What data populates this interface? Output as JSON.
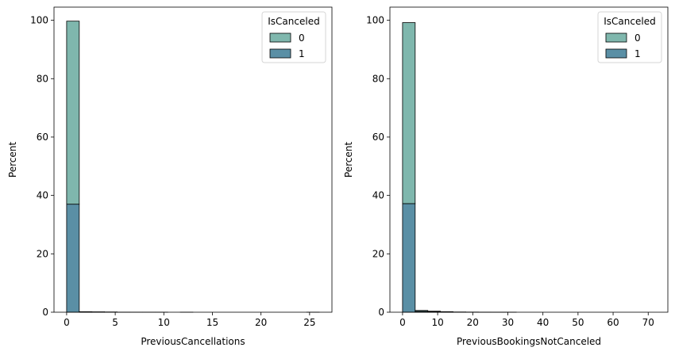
{
  "chart_data": [
    {
      "type": "bar",
      "stacked": true,
      "xlabel": "PreviousCancellations",
      "ylabel": "Percent",
      "xlim": [
        -1.3,
        27.3
      ],
      "ylim": [
        0,
        104.5
      ],
      "xticks": [
        0,
        5,
        10,
        15,
        20,
        25
      ],
      "yticks": [
        0,
        20,
        40,
        60,
        80,
        100
      ],
      "bin_edges": [
        0,
        1.3,
        2.6,
        3.9,
        5.2,
        6.5,
        7.8,
        9.1,
        10.4,
        11.7,
        13.0,
        14.3,
        15.6,
        16.9,
        18.2,
        19.5,
        20.8,
        22.1,
        23.4,
        24.7,
        26.0
      ],
      "legend": {
        "title": "IsCanceled",
        "position": "upper right"
      },
      "series": [
        {
          "name": "1",
          "color": "#5a8fa5",
          "values": [
            37.0,
            0.12,
            0.08,
            0.05,
            0.02,
            0.01,
            0.01,
            0.01,
            0.0,
            0.01,
            0.0,
            0.0,
            0.0,
            0.0,
            0.0,
            0.0,
            0.0,
            0.0,
            0.0,
            0.01
          ]
        },
        {
          "name": "0",
          "color": "#7fb7ad",
          "values": [
            62.7,
            0.05,
            0.03,
            0.02,
            0.01,
            0.0,
            0.0,
            0.0,
            0.0,
            0.0,
            0.0,
            0.0,
            0.0,
            0.0,
            0.0,
            0.0,
            0.0,
            0.0,
            0.0,
            0.0
          ]
        }
      ]
    },
    {
      "type": "bar",
      "stacked": true,
      "xlabel": "PreviousBookingsNotCanceled",
      "ylabel": "Percent",
      "xlim": [
        -3.6,
        75.6
      ],
      "ylim": [
        0,
        104.5
      ],
      "xticks": [
        0,
        10,
        20,
        30,
        40,
        50,
        60,
        70
      ],
      "yticks": [
        0,
        20,
        40,
        60,
        80,
        100
      ],
      "bin_edges": [
        0,
        3.6,
        7.2,
        10.8,
        14.4,
        18.0,
        21.6,
        25.2,
        28.8,
        32.4,
        36.0,
        39.6,
        43.2,
        46.8,
        50.4,
        54.0,
        57.6,
        61.2,
        64.8,
        68.4,
        72.0
      ],
      "legend": {
        "title": "IsCanceled",
        "position": "upper right"
      },
      "series": [
        {
          "name": "1",
          "color": "#5a8fa5",
          "values": [
            37.2,
            0.3,
            0.15,
            0.08,
            0.03,
            0.02,
            0.01,
            0.01,
            0.01,
            0.0,
            0.0,
            0.0,
            0.0,
            0.0,
            0.0,
            0.0,
            0.0,
            0.0,
            0.0,
            0.0
          ]
        },
        {
          "name": "0",
          "color": "#7fb7ad",
          "values": [
            62.0,
            0.3,
            0.2,
            0.1,
            0.05,
            0.03,
            0.02,
            0.01,
            0.01,
            0.0,
            0.0,
            0.0,
            0.0,
            0.0,
            0.0,
            0.0,
            0.0,
            0.0,
            0.0,
            0.0
          ]
        }
      ]
    }
  ]
}
